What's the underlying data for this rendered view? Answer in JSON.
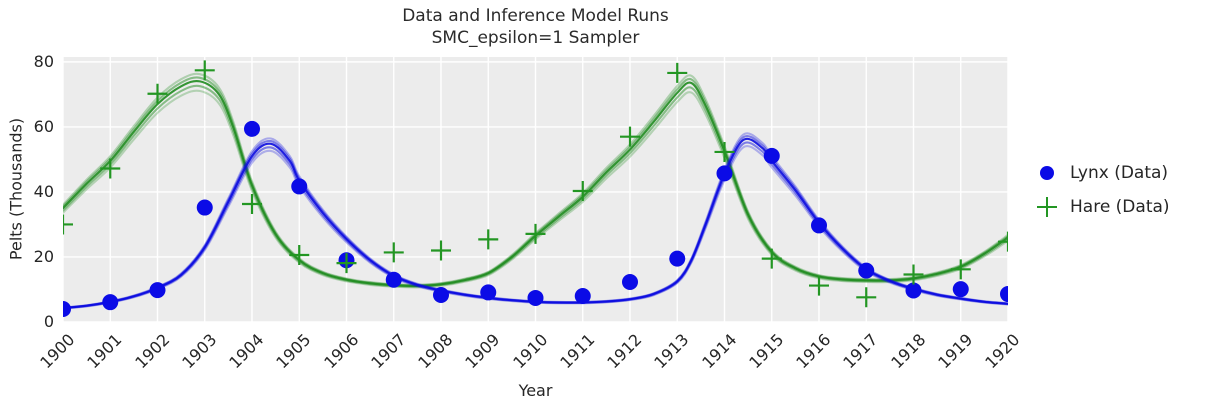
{
  "figure": {
    "background": "#ffffff",
    "plot_background": "#ececec",
    "grid_color": "#ffffff",
    "text_color": "#262626"
  },
  "chart_data": {
    "type": "line",
    "title": "Data and Inference Model Runs",
    "subtitle": "SMC_epsilon=1 Sampler",
    "xlabel": "Year",
    "ylabel": "Pelts (Thousands)",
    "xlim": [
      1900,
      1920
    ],
    "ylim": [
      0,
      81.5
    ],
    "x_ticks": [
      1900,
      1901,
      1902,
      1903,
      1904,
      1905,
      1906,
      1907,
      1908,
      1909,
      1910,
      1911,
      1912,
      1913,
      1914,
      1915,
      1916,
      1917,
      1918,
      1919,
      1920
    ],
    "y_ticks": [
      0,
      20,
      40,
      60,
      80
    ],
    "grid": true,
    "legend": {
      "position": "right-outside",
      "items": [
        {
          "label": "Lynx (Data)",
          "marker": "circle",
          "color": "#0b0be6"
        },
        {
          "label": "Hare (Data)",
          "marker": "plus",
          "color": "#239623"
        }
      ]
    },
    "data_series": [
      {
        "name": "Lynx (Data)",
        "marker": "circle",
        "color": "#0b0be6",
        "x": [
          1900,
          1901,
          1902,
          1903,
          1904,
          1905,
          1906,
          1907,
          1908,
          1909,
          1910,
          1911,
          1912,
          1913,
          1914,
          1915,
          1916,
          1917,
          1918,
          1919,
          1920
        ],
        "y": [
          4.0,
          6.1,
          9.8,
          35.2,
          59.4,
          41.7,
          19.0,
          13.0,
          8.3,
          9.1,
          7.4,
          8.0,
          12.3,
          19.5,
          45.7,
          51.1,
          29.7,
          15.8,
          9.7,
          10.1,
          8.6
        ]
      },
      {
        "name": "Hare (Data)",
        "marker": "plus",
        "color": "#239623",
        "x": [
          1900,
          1901,
          1902,
          1903,
          1904,
          1905,
          1906,
          1907,
          1908,
          1909,
          1910,
          1911,
          1912,
          1913,
          1914,
          1915,
          1916,
          1917,
          1918,
          1919,
          1920
        ],
        "y": [
          30.0,
          47.2,
          70.2,
          77.4,
          36.3,
          20.6,
          18.1,
          21.4,
          22.0,
          25.4,
          27.1,
          40.3,
          57.0,
          76.6,
          52.3,
          19.5,
          11.2,
          7.6,
          14.6,
          16.2,
          24.7
        ]
      }
    ],
    "model_runs": {
      "run_scales": [
        0.96,
        0.98,
        1.0,
        1.015,
        1.03
      ],
      "run_alphas": [
        0.28,
        0.5,
        0.9,
        0.5,
        0.3
      ],
      "lynx": {
        "color": "#0b0be0",
        "x": [
          1900,
          1900.5,
          1901,
          1901.5,
          1902,
          1902.5,
          1903,
          1903.5,
          1904,
          1904.4,
          1904.8,
          1905,
          1905.5,
          1906,
          1906.5,
          1907,
          1907.5,
          1908,
          1908.5,
          1909,
          1909.5,
          1910,
          1910.5,
          1911,
          1911.5,
          1912,
          1912.5,
          1913,
          1913.3,
          1913.6,
          1914,
          1914.4,
          1914.8,
          1915,
          1915.5,
          1916,
          1916.5,
          1917,
          1917.5,
          1918,
          1918.5,
          1919,
          1919.5,
          1920
        ],
        "y": [
          4.3,
          5.0,
          6.2,
          7.9,
          10.5,
          14.5,
          23,
          37,
          51,
          54.8,
          49.5,
          43.5,
          33.5,
          25.5,
          19,
          14.2,
          11.4,
          9.7,
          8.4,
          7.4,
          6.7,
          6.2,
          6.0,
          6.0,
          6.3,
          7.0,
          8.6,
          12.5,
          19,
          30,
          45.5,
          56,
          53.5,
          49.5,
          40.5,
          30.5,
          22.5,
          16.2,
          12.6,
          10.2,
          8.4,
          7.2,
          6.2,
          5.6
        ]
      },
      "hare": {
        "color": "#1f8c1f",
        "x": [
          1900,
          1900.5,
          1901,
          1901.5,
          1902,
          1902.5,
          1902.9,
          1903.3,
          1903.6,
          1904,
          1904.5,
          1905,
          1905.5,
          1906,
          1906.5,
          1907,
          1907.5,
          1908,
          1908.5,
          1909,
          1909.5,
          1910,
          1910.5,
          1911,
          1911.5,
          1912,
          1912.5,
          1913,
          1913.3,
          1913.6,
          1914,
          1914.5,
          1915,
          1915.5,
          1916,
          1916.5,
          1917,
          1917.5,
          1918,
          1918.5,
          1919,
          1919.5,
          1920
        ],
        "y": [
          35,
          42.5,
          49.5,
          58.5,
          67,
          72.5,
          74,
          70,
          60,
          42,
          27,
          19,
          15,
          13,
          11.9,
          11.3,
          11.1,
          11.6,
          12.9,
          15,
          20,
          26.5,
          32.5,
          38.5,
          46,
          53,
          61.5,
          70.5,
          73.5,
          66.5,
          52.5,
          33,
          21.5,
          16.5,
          14,
          13.1,
          12.8,
          12.8,
          13.4,
          14.8,
          17,
          21,
          26
        ]
      }
    }
  }
}
